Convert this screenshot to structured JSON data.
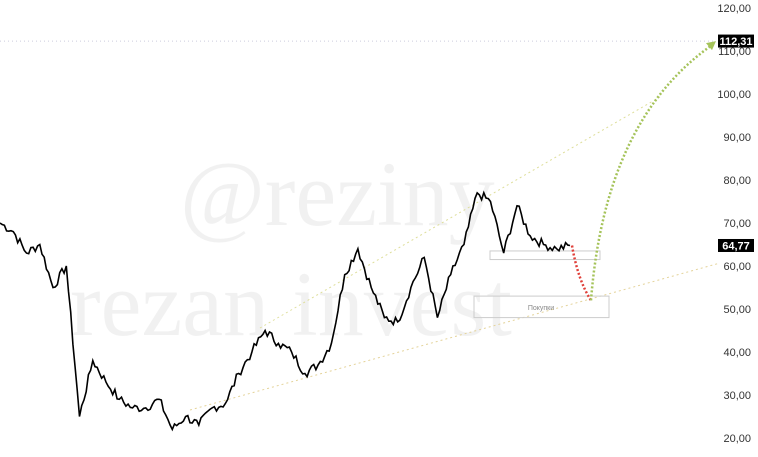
{
  "chart_data": {
    "type": "line",
    "title": "",
    "xlabel": "",
    "ylabel": "",
    "ylim": [
      20,
      120
    ],
    "yticks": [
      "120,00",
      "110,00",
      "100,00",
      "90,00",
      "80,00",
      "70,00",
      "60,00",
      "50,00",
      "40,00",
      "30,00",
      "20,00"
    ],
    "grid": false,
    "series": [
      {
        "values": [
          70,
          68,
          63,
          65,
          55,
          60,
          25,
          38,
          33,
          29,
          27,
          27,
          29,
          22,
          25,
          23,
          27,
          28,
          35,
          40,
          45,
          42,
          40,
          35,
          37,
          42,
          58,
          64,
          55,
          48,
          47,
          55,
          62,
          48,
          58,
          65,
          77,
          75,
          63,
          74,
          67,
          65,
          64,
          64.77
        ]
      }
    ],
    "last_price_label": "64,77",
    "target_label": "112,31",
    "target_value": 112.31,
    "buy_zone": {
      "label": "Покупки",
      "low": 48,
      "high": 53
    },
    "small_zone": {
      "low": 61.5,
      "high": 63.5
    },
    "forecast": {
      "dip_to": 52,
      "target": 112.31
    },
    "colors": {
      "price": "#000000",
      "trendline": "#d8d88a",
      "forecast_down": "#e0403a",
      "forecast_up": "#a5c35a",
      "label_bg": "#000000"
    }
  },
  "watermark": [
    "@reziny",
    "rezan invest"
  ]
}
